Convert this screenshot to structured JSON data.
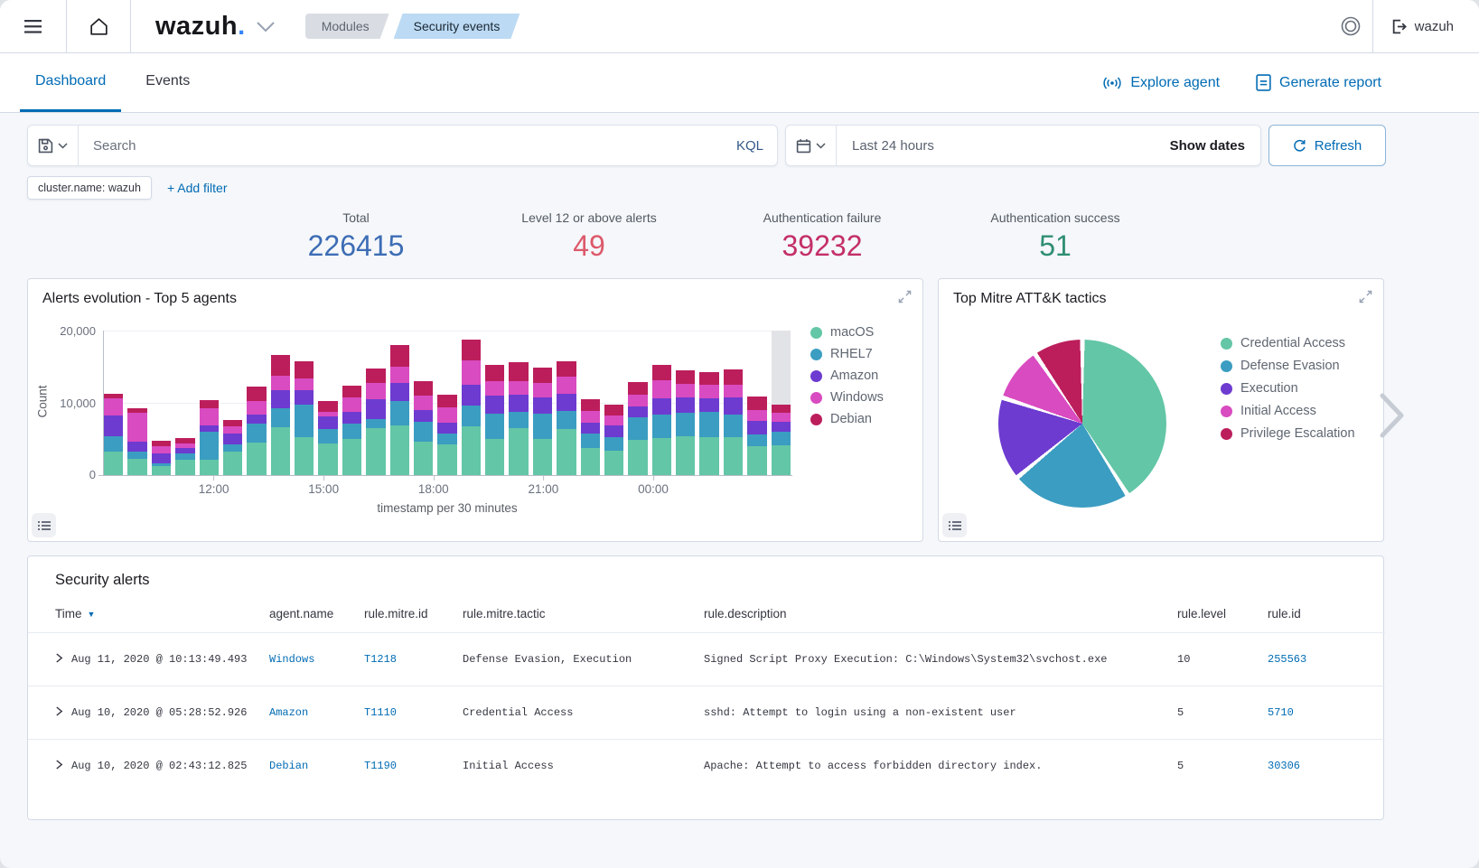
{
  "header": {
    "logo_text": "wazuh",
    "logo_dot": ".",
    "breadcrumbs": [
      "Modules",
      "Security events"
    ],
    "user": "wazuh"
  },
  "tabs": [
    {
      "label": "Dashboard",
      "active": true
    },
    {
      "label": "Events",
      "active": false
    }
  ],
  "page_actions": {
    "explore": "Explore agent",
    "report": "Generate report"
  },
  "search": {
    "placeholder": "Search",
    "kql": "KQL",
    "time_range": "Last 24 hours",
    "show_dates": "Show dates",
    "refresh": "Refresh"
  },
  "filters": {
    "pill": "cluster.name: wazuh",
    "add": "+ Add filter"
  },
  "stats": [
    {
      "label": "Total",
      "value": "226415",
      "color": "#3d6db5"
    },
    {
      "label": "Level 12 or above alerts",
      "value": "49",
      "color": "#dd5a6b"
    },
    {
      "label": "Authentication failure",
      "value": "39232",
      "color": "#c42f69"
    },
    {
      "label": "Authentication success",
      "value": "51",
      "color": "#2f8e74"
    }
  ],
  "icons": {
    "sort-desc": "▼",
    "hamburger": "three-lines",
    "home": "house-outline",
    "save-query": "floppy-disk",
    "calendar": "calendar-grid",
    "refresh": "circular-arrow",
    "status-ring": "double-circle",
    "logout": "exit-arrow",
    "explore-agent": "signal-waves",
    "generate-report": "document-lines",
    "panel-expand": "diagonal-arrows",
    "panel-inspect": "bulleted-list",
    "row-expand": "chevron-right",
    "carousel-next": "chevron-right-large"
  },
  "chart_data": [
    {
      "type": "bar",
      "stacked": true,
      "title": "Alerts evolution - Top 5 agents",
      "xlabel": "timestamp per 30 minutes",
      "ylabel": "Count",
      "ylim": [
        0,
        20000
      ],
      "yticks": [
        "0",
        "10,000",
        "20,000"
      ],
      "xticks": [
        {
          "label": "12:00",
          "pos": 16
        },
        {
          "label": "15:00",
          "pos": 32
        },
        {
          "label": "18:00",
          "pos": 48
        },
        {
          "label": "21:00",
          "pos": 64
        },
        {
          "label": "00:00",
          "pos": 80
        }
      ],
      "legend_position": "right",
      "grid": true,
      "highlight_last_bucket": true,
      "series": [
        {
          "name": "macOS",
          "color": "#63C6A6",
          "values": [
            3200,
            2300,
            1200,
            2100,
            2100,
            3300,
            4500,
            6600,
            5300,
            4400,
            5000,
            6500,
            6900,
            4600,
            4300,
            6700,
            5000,
            6500,
            5000,
            6400,
            3700,
            3400,
            4900,
            5100,
            5400,
            5300,
            5200,
            4000,
            4100
          ]
        },
        {
          "name": "RHEL7",
          "color": "#3B9DC1",
          "values": [
            2200,
            1000,
            400,
            900,
            3900,
            900,
            2600,
            2600,
            4500,
            2000,
            2100,
            1300,
            3400,
            2800,
            1500,
            2900,
            3500,
            2300,
            3500,
            2500,
            2000,
            1900,
            3100,
            3300,
            3200,
            3400,
            3200,
            1600,
            1900
          ]
        },
        {
          "name": "Amazon",
          "color": "#6D3BD0",
          "values": [
            2900,
            1300,
            1400,
            700,
            900,
            1500,
            1300,
            2500,
            2000,
            1700,
            1700,
            2700,
            2400,
            1600,
            1400,
            2900,
            2500,
            2300,
            2200,
            2300,
            1500,
            1600,
            1500,
            2200,
            2200,
            1900,
            2300,
            1900,
            1400
          ]
        },
        {
          "name": "Windows",
          "color": "#D94BC0",
          "values": [
            2300,
            4000,
            1000,
            700,
            2300,
            1100,
            1900,
            2100,
            1600,
            600,
            1900,
            2200,
            2300,
            2000,
            2200,
            3400,
            2000,
            1900,
            2100,
            2400,
            1700,
            1400,
            1600,
            2500,
            1800,
            1900,
            1800,
            1500,
            1200
          ]
        },
        {
          "name": "Debian",
          "color": "#BC1E5C",
          "values": [
            600,
            600,
            800,
            700,
            1200,
            800,
            2000,
            2800,
            2400,
            1500,
            1700,
            2100,
            3000,
            2000,
            1700,
            2900,
            2200,
            2600,
            2100,
            2200,
            1600,
            1400,
            1800,
            2200,
            1900,
            1800,
            2100,
            1900,
            1100
          ]
        }
      ]
    },
    {
      "type": "pie",
      "title": "Top Mitre ATT&K tactics",
      "labels": [
        "Credential Access",
        "Defense Evasion",
        "Execution",
        "Initial Access",
        "Privilege Escalation"
      ],
      "values_pct": [
        41,
        23,
        16,
        10.5,
        9.5
      ],
      "colors": [
        "#63C6A6",
        "#3B9DC1",
        "#6D3BD0",
        "#D94BC0",
        "#BC1E5C"
      ],
      "legend_position": "right"
    }
  ],
  "table": {
    "title": "Security alerts",
    "columns": [
      "Time",
      "agent.name",
      "rule.mitre.id",
      "rule.mitre.tactic",
      "rule.description",
      "rule.level",
      "rule.id"
    ],
    "rows": [
      {
        "time": "Aug 11, 2020 @ 10:13:49.493",
        "agent": "Windows",
        "mitre_id": "T1218",
        "tactic": "Defense Evasion, Execution",
        "description": "Signed Script Proxy Execution: C:\\Windows\\System32\\svchost.exe",
        "level": "10",
        "rule_id": "255563"
      },
      {
        "time": "Aug 10, 2020 @ 05:28:52.926",
        "agent": "Amazon",
        "mitre_id": "T1110",
        "tactic": "Credential Access",
        "description": "sshd: Attempt to login using a non-existent user",
        "level": "5",
        "rule_id": "5710"
      },
      {
        "time": "Aug 10, 2020 @ 02:43:12.825",
        "agent": "Debian",
        "mitre_id": "T1190",
        "tactic": "Initial Access",
        "description": "Apache: Attempt to access forbidden directory index.",
        "level": "5",
        "rule_id": "30306"
      }
    ]
  }
}
